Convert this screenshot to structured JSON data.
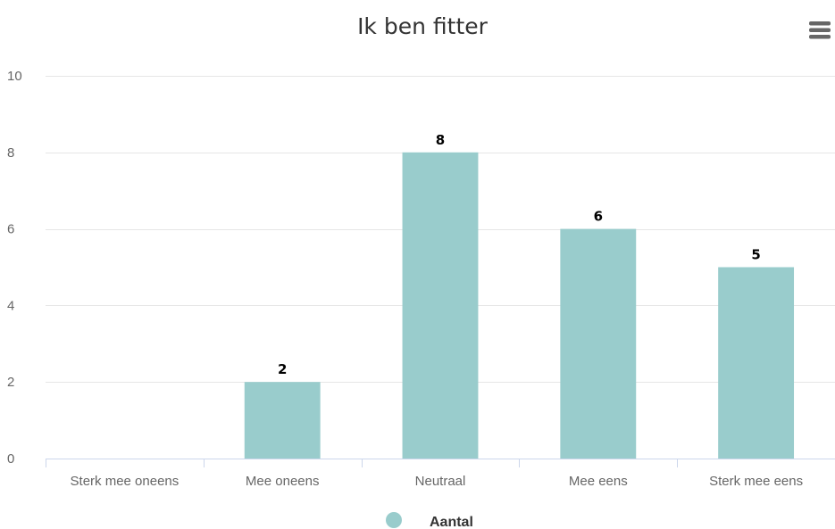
{
  "chart_data": {
    "type": "bar",
    "title": "Ik ben fitter",
    "categories": [
      "Sterk mee oneens",
      "Mee oneens",
      "Neutraal",
      "Mee eens",
      "Sterk mee eens"
    ],
    "series": [
      {
        "name": "Aantal",
        "values": [
          0,
          2,
          8,
          6,
          5
        ],
        "color": "#99cccc"
      }
    ],
    "data_labels": [
      "",
      "2",
      "8",
      "6",
      "5"
    ],
    "ylim": [
      0,
      10
    ],
    "yticks": [
      0,
      2,
      4,
      6,
      8,
      10
    ],
    "ytick_labels": [
      "0",
      "2",
      "4",
      "6",
      "8",
      "10"
    ],
    "xlabel": "",
    "ylabel": "",
    "grid": true,
    "legend": "bottom-center"
  },
  "toolbar": {
    "menu_icon": "hamburger-menu-icon"
  }
}
